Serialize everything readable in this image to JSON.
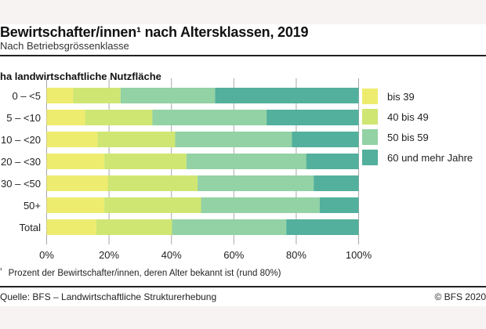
{
  "header": {
    "title": "Bewirtschafter/innen¹ nach Altersklassen, 2019",
    "subtitle": "Nach Betriebsgrössenklasse"
  },
  "footer": {
    "footnote_marker": "¹",
    "footnote": "Prozent der Bewirtschafter/innen, deren Alter bekannt ist (rund 80%)",
    "source": "Quelle: BFS – Landwirtschaftliche Strukturerhebung",
    "copyright": "© BFS 2020"
  },
  "colors": {
    "bis_39": "#eeec6f",
    "40_49": "#cfe672",
    "50_59": "#92d2a4",
    "60_plus": "#52b09c",
    "grid": "#a8a8a8",
    "band": "#f8f3f3"
  },
  "chart_data": {
    "type": "bar",
    "orientation": "horizontal",
    "stacked": true,
    "title": "Bewirtschafter/innen¹ nach Altersklassen, 2019",
    "subtitle": "Nach Betriebsgrössenklasse",
    "ylabel": "ha landwirtschaftliche Nutzfläche",
    "xlabel": "",
    "categories": [
      "0 – <5",
      "5 – <10",
      "10 – <20",
      "20 – <30",
      "30 – <50",
      "50+",
      "Total"
    ],
    "series": [
      {
        "name": "bis 39",
        "color": "#eeec6f",
        "values": [
          8.5,
          12.3,
          16.3,
          18.5,
          19.6,
          18.5,
          15.9
        ]
      },
      {
        "name": "40 bis 49",
        "color": "#cfe672",
        "values": [
          15.2,
          21.6,
          24.9,
          26.3,
          28.8,
          31.0,
          24.3
        ]
      },
      {
        "name": "50 bis 59",
        "color": "#92d2a4",
        "values": [
          30.3,
          36.6,
          37.4,
          38.4,
          37.2,
          38.0,
          36.6
        ]
      },
      {
        "name": "60 und mehr Jahre",
        "color": "#52b09c",
        "values": [
          46.0,
          29.5,
          21.4,
          16.8,
          14.4,
          12.5,
          23.2
        ]
      }
    ],
    "xlim": [
      0,
      100
    ],
    "xticks": [
      0,
      20,
      40,
      60,
      80,
      100
    ],
    "xtick_labels": [
      "0%",
      "20%",
      "40%",
      "60%",
      "80%",
      "100%"
    ],
    "grid": true,
    "legend_position": "right"
  }
}
